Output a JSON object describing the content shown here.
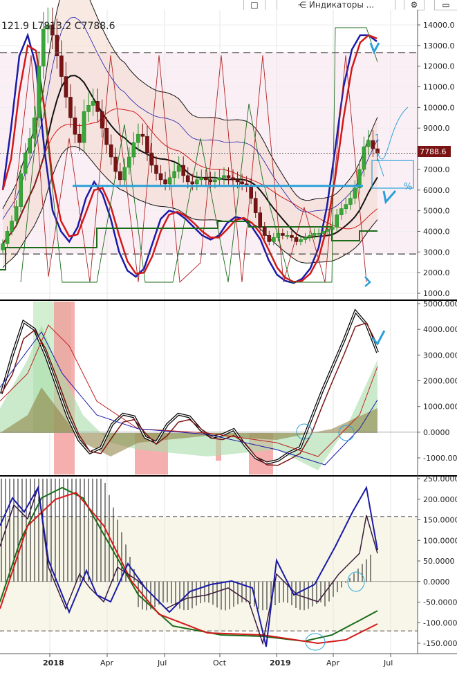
{
  "toolbar": {
    "indicators_label": "Индикаторы ...",
    "settings_icon": "gear-icon",
    "chart_icon": "chart-icon",
    "panel_icon": "panel-icon"
  },
  "ohlc_text": "121.9 L7813.2 C7788.6",
  "last_price_label": "7788.6",
  "colors": {
    "bull": "#1e8c1e",
    "bear": "#7a1414",
    "blue": "#1a1aa8",
    "red": "#d41818",
    "green": "#1a6b1a",
    "cyan": "#2ba0d8",
    "pink_bg": "#fbeff6",
    "cream_bg": "#f7f6e8"
  },
  "annotations": {
    "pct_label": "%",
    "one_label": "1"
  },
  "chart_data": [
    {
      "type": "candlestick",
      "panel": "price",
      "y_ticks": [
        "14000.0",
        "13000.0",
        "12000.0",
        "11000.0",
        "10000.0",
        "9000.0",
        "8000.0",
        "7000.0",
        "6000.0",
        "5000.0",
        "4000.0",
        "3000.0",
        "2000.0",
        "1000.0"
      ],
      "ylim": [
        1000,
        14000
      ],
      "x_ticks": [
        "2018",
        "Apr",
        "Jul",
        "Oct",
        "2019",
        "Apr",
        "Jul"
      ],
      "last_price": 7788.6,
      "horizontal_levels": [
        12650,
        6200,
        2900
      ],
      "candles_close": [
        3400,
        4000,
        4500,
        5200,
        6800,
        7800,
        8500,
        9500,
        12000,
        13800,
        14000,
        13500,
        12500,
        11500,
        10500,
        9500,
        8700,
        8300,
        9800,
        10100,
        10300,
        9800,
        9000,
        8200,
        7600,
        6900,
        6500,
        7100,
        7600,
        8300,
        8700,
        8600,
        7800,
        7200,
        6800,
        6500,
        6300,
        6600,
        6900,
        7200,
        6700,
        6400,
        6300,
        6500,
        6600,
        6500,
        6400,
        6500,
        6600,
        6700,
        6600,
        6500,
        6400,
        6300,
        6200,
        5600,
        4900,
        4200,
        3800,
        3500,
        3700,
        3900,
        3800,
        3800,
        3700,
        3500,
        3600,
        3700,
        3800,
        3900,
        3900,
        4000,
        4100,
        4200,
        4800,
        5100,
        5300,
        5600,
        6100,
        7000,
        8100,
        8400,
        8000,
        7788.6
      ]
    },
    {
      "type": "oscillator",
      "panel": "middle",
      "y_ticks": [
        "5000.0000",
        "4000.0000",
        "3000.0000",
        "2000.0000",
        "1000.0000",
        "0.0000",
        "-1000.0000"
      ],
      "ylim": [
        -1500,
        5000
      ]
    },
    {
      "type": "oscillator",
      "panel": "bottom",
      "y_ticks": [
        "250.0000",
        "200.0000",
        "150.0000",
        "100.0000",
        "50.0000",
        "0.0000",
        "-50.0000",
        "-100.0000",
        "-150.0000"
      ],
      "ylim": [
        -160,
        250
      ],
      "dashed_levels": [
        158,
        -120
      ]
    }
  ]
}
